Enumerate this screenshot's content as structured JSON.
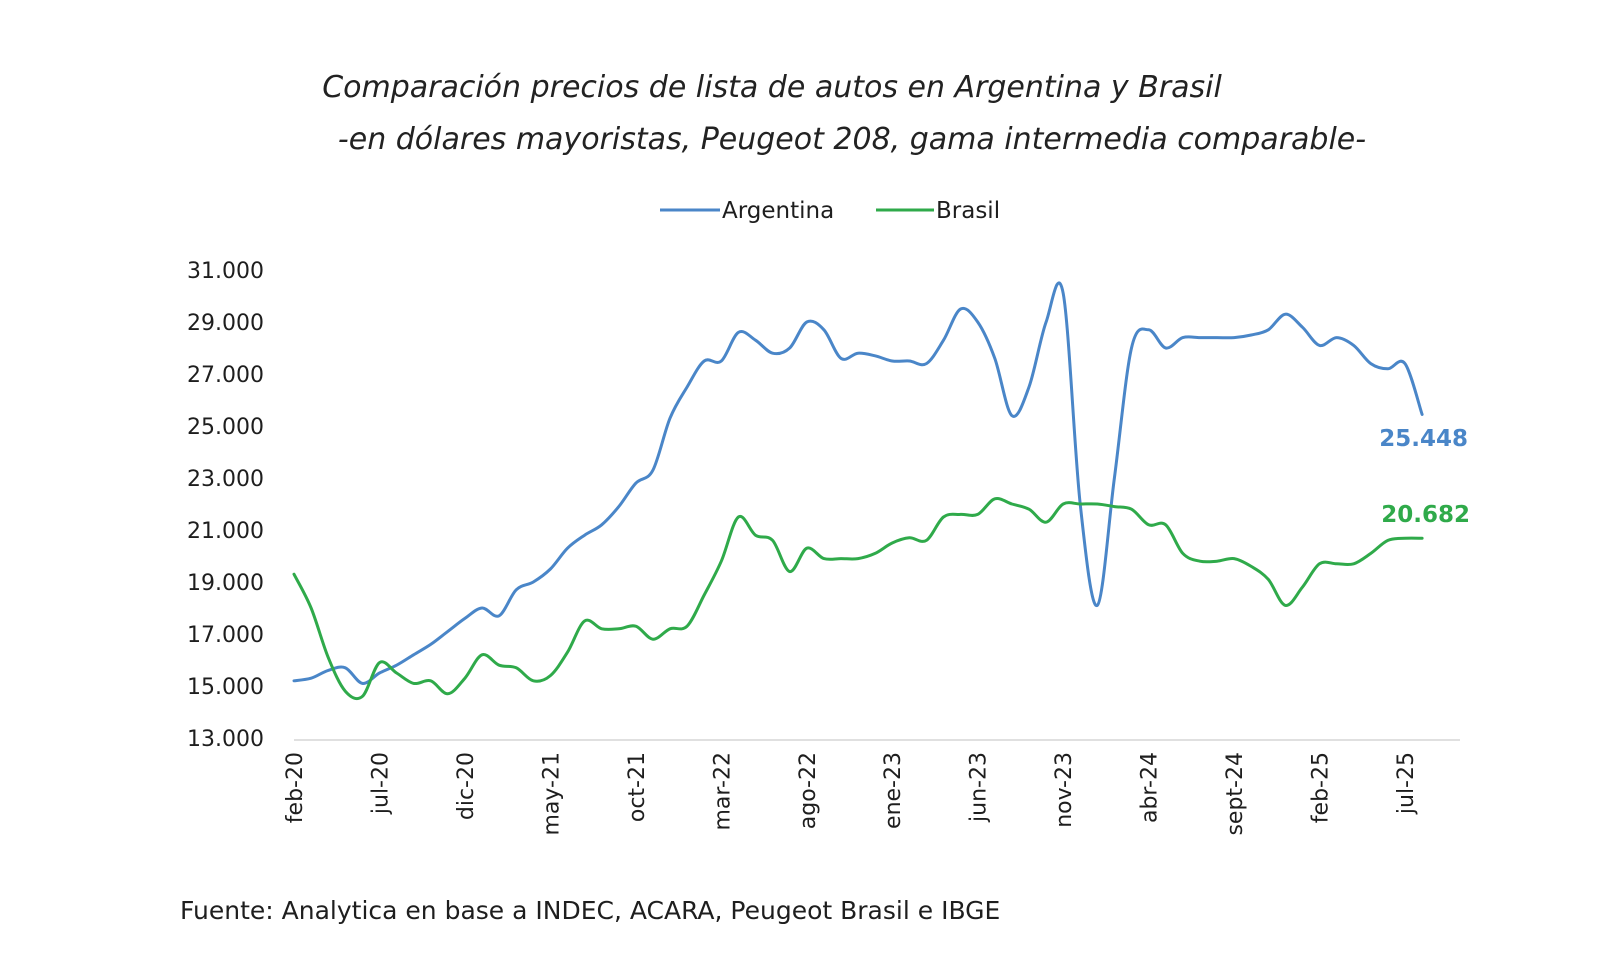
{
  "chart_data": {
    "type": "line",
    "title": "Comparación precios de lista de autos en Argentina y Brasil",
    "subtitle": "-en dólares mayoristas, Peugeot 208, gama intermedia comparable-",
    "legend_position": "top-center",
    "grid": false,
    "ylim": [
      13000,
      31000
    ],
    "y_ticks": [
      "13.000",
      "15.000",
      "17.000",
      "19.000",
      "21.000",
      "23.000",
      "25.000",
      "27.000",
      "29.000",
      "31.000"
    ],
    "x_range": [
      "feb-20",
      "jul-25"
    ],
    "x_ticks": [
      "feb-20",
      "jul-20",
      "dic-20",
      "may-21",
      "oct-21",
      "mar-22",
      "ago-22",
      "ene-23",
      "jun-23",
      "nov-23",
      "abr-24",
      "sept-24",
      "feb-25",
      "jul-25"
    ],
    "series": [
      {
        "name": "Argentina",
        "color": "#4a86c8",
        "end_label": "25.448",
        "points": [
          [
            "2020-02",
            15200
          ],
          [
            "2020-03",
            15300
          ],
          [
            "2020-04",
            15600
          ],
          [
            "2020-05",
            15700
          ],
          [
            "2020-06",
            15100
          ],
          [
            "2020-07",
            15500
          ],
          [
            "2020-08",
            15800
          ],
          [
            "2020-09",
            16200
          ],
          [
            "2020-10",
            16600
          ],
          [
            "2020-11",
            17100
          ],
          [
            "2020-12",
            17600
          ],
          [
            "2021-01",
            18000
          ],
          [
            "2021-02",
            17700
          ],
          [
            "2021-03",
            18700
          ],
          [
            "2021-04",
            19000
          ],
          [
            "2021-05",
            19500
          ],
          [
            "2021-06",
            20300
          ],
          [
            "2021-07",
            20800
          ],
          [
            "2021-08",
            21200
          ],
          [
            "2021-09",
            21900
          ],
          [
            "2021-10",
            22800
          ],
          [
            "2021-11",
            23300
          ],
          [
            "2021-12",
            25300
          ],
          [
            "2022-01",
            26500
          ],
          [
            "2022-02",
            27500
          ],
          [
            "2022-03",
            27500
          ],
          [
            "2022-04",
            28600
          ],
          [
            "2022-05",
            28300
          ],
          [
            "2022-06",
            27800
          ],
          [
            "2022-07",
            28000
          ],
          [
            "2022-08",
            29000
          ],
          [
            "2022-09",
            28700
          ],
          [
            "2022-10",
            27600
          ],
          [
            "2022-11",
            27800
          ],
          [
            "2022-12",
            27700
          ],
          [
            "2023-01",
            27500
          ],
          [
            "2023-02",
            27500
          ],
          [
            "2023-03",
            27400
          ],
          [
            "2023-04",
            28300
          ],
          [
            "2023-05",
            29500
          ],
          [
            "2023-06",
            29000
          ],
          [
            "2023-07",
            27600
          ],
          [
            "2023-08",
            25400
          ],
          [
            "2023-09",
            26500
          ],
          [
            "2023-10",
            29000
          ],
          [
            "2023-11",
            30100
          ],
          [
            "2023-12",
            22000
          ],
          [
            "2024-01",
            18100
          ],
          [
            "2024-02",
            23000
          ],
          [
            "2024-03",
            28000
          ],
          [
            "2024-04",
            28700
          ],
          [
            "2024-05",
            28000
          ],
          [
            "2024-06",
            28400
          ],
          [
            "2024-07",
            28400
          ],
          [
            "2024-08",
            28400
          ],
          [
            "2024-09",
            28400
          ],
          [
            "2024-10",
            28500
          ],
          [
            "2024-11",
            28700
          ],
          [
            "2024-12",
            29300
          ],
          [
            "2025-01",
            28800
          ],
          [
            "2025-02",
            28100
          ],
          [
            "2025-03",
            28400
          ],
          [
            "2025-04",
            28100
          ],
          [
            "2025-05",
            27400
          ],
          [
            "2025-06",
            27200
          ],
          [
            "2025-07",
            27400
          ],
          [
            "2025-08",
            25448
          ]
        ]
      },
      {
        "name": "Brasil",
        "color": "#2faa4a",
        "end_label": "20.682",
        "points": [
          [
            "2020-02",
            19300
          ],
          [
            "2020-03",
            18000
          ],
          [
            "2020-04",
            16100
          ],
          [
            "2020-05",
            14800
          ],
          [
            "2020-06",
            14600
          ],
          [
            "2020-07",
            15900
          ],
          [
            "2020-08",
            15500
          ],
          [
            "2020-09",
            15100
          ],
          [
            "2020-10",
            15200
          ],
          [
            "2020-11",
            14700
          ],
          [
            "2020-12",
            15300
          ],
          [
            "2021-01",
            16200
          ],
          [
            "2021-02",
            15800
          ],
          [
            "2021-03",
            15700
          ],
          [
            "2021-04",
            15200
          ],
          [
            "2021-05",
            15400
          ],
          [
            "2021-06",
            16300
          ],
          [
            "2021-07",
            17500
          ],
          [
            "2021-08",
            17200
          ],
          [
            "2021-09",
            17200
          ],
          [
            "2021-10",
            17300
          ],
          [
            "2021-11",
            16800
          ],
          [
            "2021-12",
            17200
          ],
          [
            "2022-01",
            17300
          ],
          [
            "2022-02",
            18500
          ],
          [
            "2022-03",
            19800
          ],
          [
            "2022-04",
            21500
          ],
          [
            "2022-05",
            20800
          ],
          [
            "2022-06",
            20600
          ],
          [
            "2022-07",
            19400
          ],
          [
            "2022-08",
            20300
          ],
          [
            "2022-09",
            19900
          ],
          [
            "2022-10",
            19900
          ],
          [
            "2022-11",
            19900
          ],
          [
            "2022-12",
            20100
          ],
          [
            "2023-01",
            20500
          ],
          [
            "2023-02",
            20700
          ],
          [
            "2023-03",
            20600
          ],
          [
            "2023-04",
            21500
          ],
          [
            "2023-05",
            21600
          ],
          [
            "2023-06",
            21600
          ],
          [
            "2023-07",
            22200
          ],
          [
            "2023-08",
            22000
          ],
          [
            "2023-09",
            21800
          ],
          [
            "2023-10",
            21300
          ],
          [
            "2023-11",
            22000
          ],
          [
            "2023-12",
            22000
          ],
          [
            "2024-01",
            22000
          ],
          [
            "2024-02",
            21900
          ],
          [
            "2024-03",
            21800
          ],
          [
            "2024-04",
            21200
          ],
          [
            "2024-05",
            21200
          ],
          [
            "2024-06",
            20100
          ],
          [
            "2024-07",
            19800
          ],
          [
            "2024-08",
            19800
          ],
          [
            "2024-09",
            19900
          ],
          [
            "2024-10",
            19600
          ],
          [
            "2024-11",
            19100
          ],
          [
            "2024-12",
            18100
          ],
          [
            "2025-01",
            18800
          ],
          [
            "2025-02",
            19700
          ],
          [
            "2025-03",
            19700
          ],
          [
            "2025-04",
            19700
          ],
          [
            "2025-05",
            20100
          ],
          [
            "2025-06",
            20600
          ],
          [
            "2025-07",
            20682
          ],
          [
            "2025-08",
            20682
          ]
        ]
      }
    ]
  },
  "source_note": "Fuente: Analytica en base a INDEC, ACARA, Peugeot Brasil e IBGE"
}
